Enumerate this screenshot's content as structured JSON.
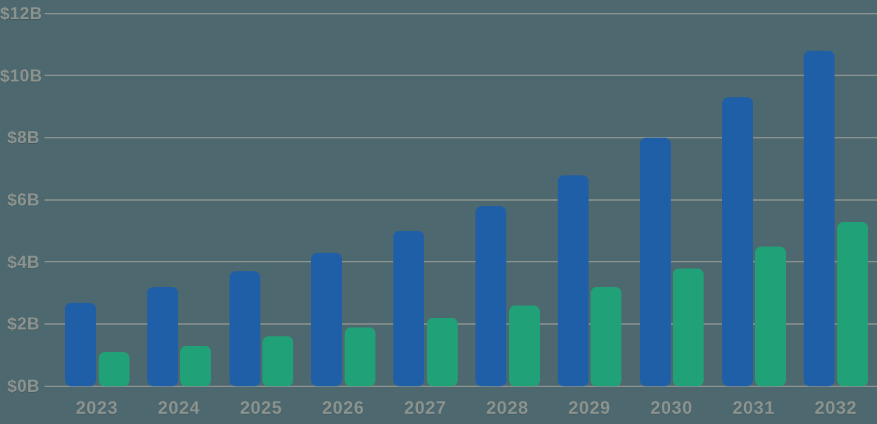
{
  "chart_data": {
    "type": "bar",
    "title": "",
    "categories": [
      "2023",
      "2024",
      "2025",
      "2026",
      "2027",
      "2028",
      "2029",
      "2030",
      "2031",
      "2032"
    ],
    "series": [
      {
        "name": "series_blue",
        "color": "#1f5fa8",
        "values": [
          2.7,
          3.2,
          3.7,
          4.3,
          5.0,
          5.8,
          6.8,
          8.0,
          9.3,
          10.8
        ]
      },
      {
        "name": "series_green",
        "color": "#21a178",
        "values": [
          1.1,
          1.3,
          1.6,
          1.9,
          2.2,
          2.6,
          3.2,
          3.8,
          4.5,
          5.3
        ]
      }
    ],
    "y_axis": {
      "prefix": "$",
      "unit": "B",
      "ticks": [
        "$0B",
        "$2B",
        "$4B",
        "$6B",
        "$8B",
        "$10B",
        "$12B"
      ],
      "tick_values": [
        0,
        2,
        4,
        6,
        8,
        10,
        12
      ],
      "ylim": [
        0,
        12
      ]
    },
    "x_axis": {
      "label": ""
    },
    "grid": true,
    "legend": "none",
    "colors": {
      "background": "#4d686f",
      "gridline": "#8b928e",
      "label": "#8d948f",
      "bar_blue": "#1f5fa8",
      "bar_green": "#21a178"
    }
  }
}
